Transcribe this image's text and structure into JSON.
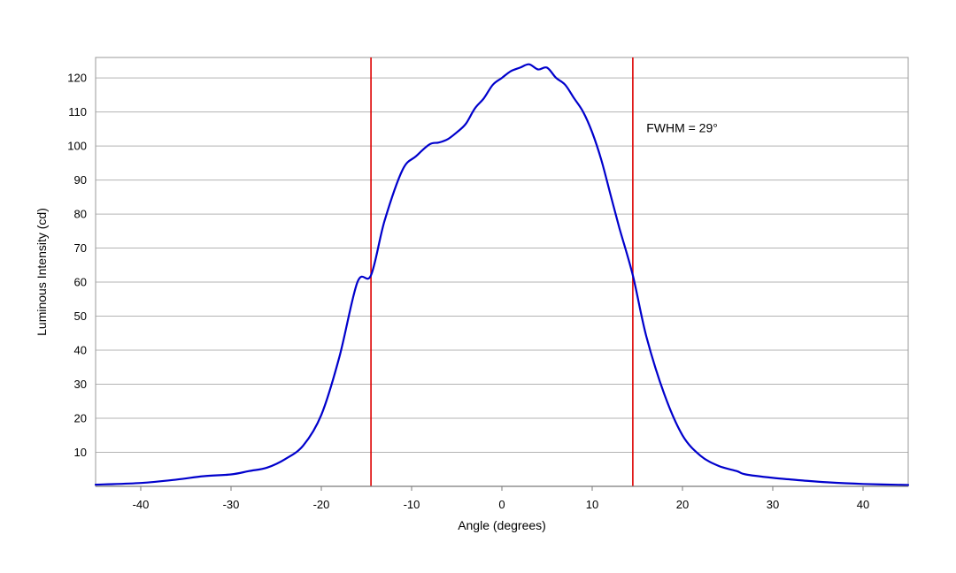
{
  "chart_data": {
    "type": "line",
    "title": "",
    "xlabel": "Angle (degrees)",
    "ylabel": "Luminous Intensity (cd)",
    "xlim": [
      -45,
      45
    ],
    "ylim": [
      0,
      126
    ],
    "xticks": [
      -40,
      -30,
      -20,
      -10,
      0,
      10,
      20,
      30,
      40
    ],
    "yticks": [
      10,
      20,
      30,
      40,
      50,
      60,
      70,
      80,
      90,
      100,
      110,
      120
    ],
    "grid": "horizontal",
    "legend": "none",
    "colors": {
      "series": "#0000cc",
      "markers": "#dd0000",
      "grid": "#b3b3b3",
      "frame": "#9a9a9a"
    },
    "series": [
      {
        "x": [
          -45,
          -40,
          -36,
          -33,
          -30,
          -28,
          -26,
          -24,
          -22,
          -20,
          -18,
          -16,
          -14.5,
          -13,
          -11,
          -9.5,
          -8,
          -7,
          -6,
          -5,
          -4,
          -3,
          -2,
          -1,
          0,
          1,
          2,
          3,
          4,
          5,
          6,
          7,
          8,
          9,
          10,
          11,
          12,
          13,
          14.5,
          16,
          18,
          20,
          22,
          24,
          26,
          27,
          30,
          33,
          36,
          40,
          45
        ],
        "y": [
          0.5,
          1,
          2,
          3,
          3.5,
          4.5,
          5.5,
          8,
          12,
          21,
          38,
          60,
          62,
          78,
          93,
          97,
          100.5,
          101,
          102,
          104,
          106.5,
          111,
          114,
          118,
          120,
          122,
          123,
          124,
          122.5,
          123,
          120,
          118,
          114,
          110,
          104,
          96,
          86,
          76,
          62,
          44,
          27,
          15,
          9,
          6,
          4.5,
          3.5,
          2.5,
          1.8,
          1.2,
          0.7,
          0.4
        ]
      }
    ],
    "vlines": [
      -14.5,
      14.5
    ],
    "annotations": [
      {
        "text": "FWHM = 29°",
        "x": 16,
        "y": 104
      }
    ]
  }
}
